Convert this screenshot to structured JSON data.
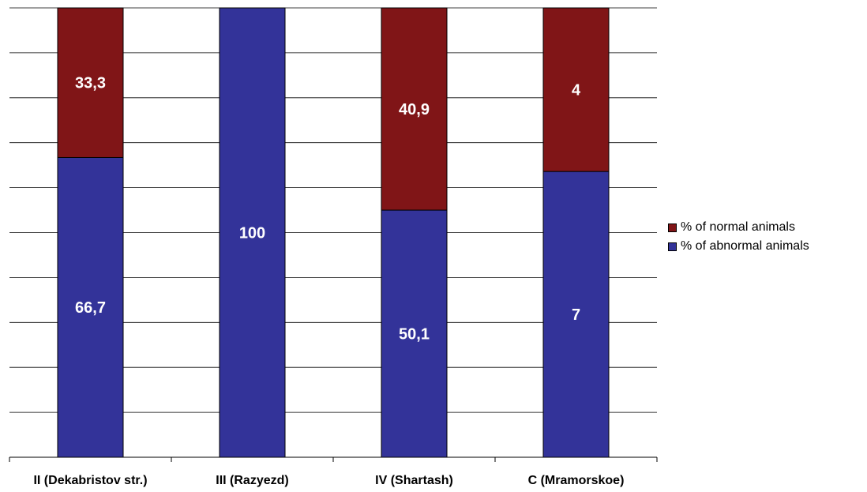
{
  "chart_data": {
    "type": "bar",
    "stacked": true,
    "categories": [
      "II (Dekabristov str.)",
      "III (Razyezd)",
      "IV (Shartash)",
      "C (Mramorskoe)"
    ],
    "series": [
      {
        "name": "% of abnormal animals",
        "color": "#333399",
        "values": [
          66.7,
          100,
          50.1,
          7
        ],
        "labels": [
          "66,7",
          "100",
          "50,1",
          "7"
        ]
      },
      {
        "name": "% of normal animals",
        "color": "#801517",
        "values": [
          33.3,
          0,
          40.9,
          4
        ],
        "labels": [
          "33,3",
          "",
          "40,9",
          "4"
        ]
      }
    ],
    "segment_share": [
      [
        0.667,
        1.0,
        0.55,
        0.636
      ],
      [
        0.333,
        0.0,
        0.45,
        0.364
      ]
    ],
    "title": "",
    "xlabel": "",
    "ylabel": "",
    "ylim": [
      0,
      100
    ],
    "grid": true,
    "legend": "right"
  },
  "legend": {
    "items": [
      {
        "label": "% of normal animals",
        "color": "#801517"
      },
      {
        "label": "% of abnormal animals",
        "color": "#333399"
      }
    ]
  }
}
